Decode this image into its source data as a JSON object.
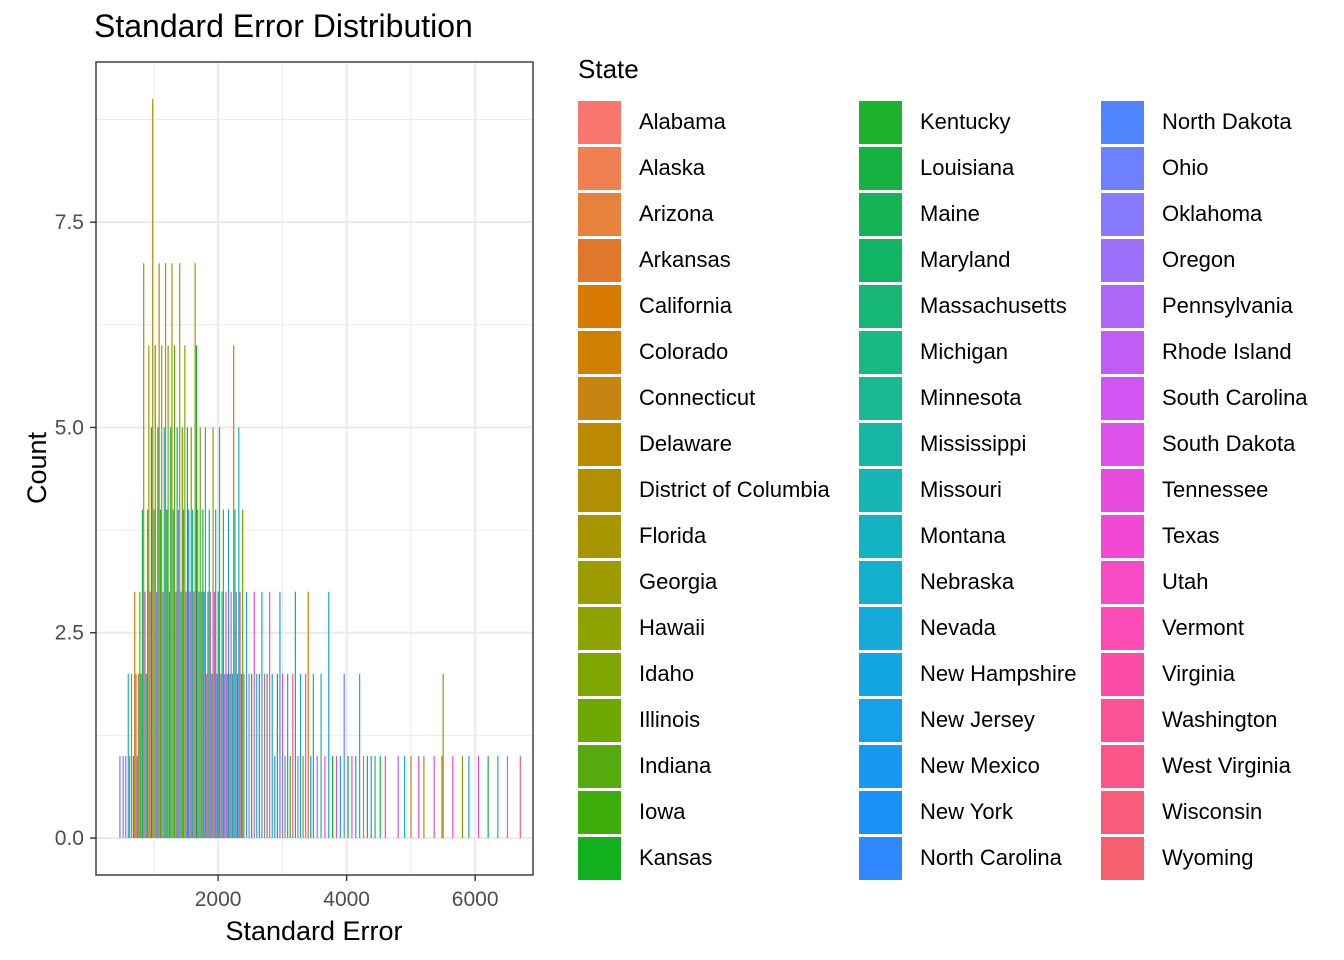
{
  "chart_data": {
    "type": "bar",
    "title": "Standard Error Distribution",
    "xlabel": "Standard Error",
    "ylabel": "Count",
    "xlim": [
      100,
      6900
    ],
    "ylim": [
      -0.45,
      9.45
    ],
    "x_ticks": [
      2000,
      4000,
      6000
    ],
    "y_ticks": [
      0.0,
      2.5,
      5.0,
      7.5
    ],
    "y_tick_labels": [
      "0.0",
      "2.5",
      "5.0",
      "7.5"
    ],
    "grid": true,
    "legend_title": "State",
    "legend_placement": "right",
    "series": [
      {
        "name": "Alabama",
        "color": "#F8766D"
      },
      {
        "name": "Alaska",
        "color": "#F07F52"
      },
      {
        "name": "Arizona",
        "color": "#E7823C"
      },
      {
        "name": "Arkansas",
        "color": "#E0782B"
      },
      {
        "name": "California",
        "color": "#D97A00"
      },
      {
        "name": "Colorado",
        "color": "#D17F00"
      },
      {
        "name": "Connecticut",
        "color": "#C68411"
      },
      {
        "name": "Delaware",
        "color": "#BB8A00"
      },
      {
        "name": "District of Columbia",
        "color": "#B28F00"
      },
      {
        "name": "Florida",
        "color": "#A89600"
      },
      {
        "name": "Georgia",
        "color": "#9C9B00"
      },
      {
        "name": "Hawaii",
        "color": "#8FA300"
      },
      {
        "name": "Idaho",
        "color": "#7FA600"
      },
      {
        "name": "Illinois",
        "color": "#6BA800"
      },
      {
        "name": "Indiana",
        "color": "#55AB0D"
      },
      {
        "name": "Iowa",
        "color": "#3CAD0A"
      },
      {
        "name": "Kansas",
        "color": "#13B01E"
      },
      {
        "name": "Kentucky",
        "color": "#1CB22C"
      },
      {
        "name": "Louisiana",
        "color": "#16B343"
      },
      {
        "name": "Maine",
        "color": "#14B455"
      },
      {
        "name": "Maryland",
        "color": "#12B565"
      },
      {
        "name": "Massachusetts",
        "color": "#16B674"
      },
      {
        "name": "Michigan",
        "color": "#17B883"
      },
      {
        "name": "Minnesota",
        "color": "#19B992"
      },
      {
        "name": "Mississippi",
        "color": "#17B8A3"
      },
      {
        "name": "Missouri",
        "color": "#14B7B3"
      },
      {
        "name": "Montana",
        "color": "#12B4C1"
      },
      {
        "name": "Nebraska",
        "color": "#13B0CE"
      },
      {
        "name": "Nevada",
        "color": "#14ABD8"
      },
      {
        "name": "New Hampshire",
        "color": "#14A6E1"
      },
      {
        "name": "New Jersey",
        "color": "#16A0E9"
      },
      {
        "name": "New Mexico",
        "color": "#1899F1"
      },
      {
        "name": "New York",
        "color": "#1891F8"
      },
      {
        "name": "North Carolina",
        "color": "#2F88FC"
      },
      {
        "name": "North Dakota",
        "color": "#4F85FF"
      },
      {
        "name": "Ohio",
        "color": "#6D80FF"
      },
      {
        "name": "Oklahoma",
        "color": "#877AFD"
      },
      {
        "name": "Oregon",
        "color": "#9C70FB"
      },
      {
        "name": "Pennsylvania",
        "color": "#AE67F9"
      },
      {
        "name": "Rhode Island",
        "color": "#C05DF6"
      },
      {
        "name": "South Carolina",
        "color": "#D254F2"
      },
      {
        "name": "South Dakota",
        "color": "#DF4FEA"
      },
      {
        "name": "Tennessee",
        "color": "#E94BE0"
      },
      {
        "name": "Texas",
        "color": "#F149D3"
      },
      {
        "name": "Utah",
        "color": "#F64BC4"
      },
      {
        "name": "Vermont",
        "color": "#FA4BB6"
      },
      {
        "name": "Virginia",
        "color": "#FD4CA7"
      },
      {
        "name": "Washington",
        "color": "#FD5197"
      },
      {
        "name": "West Virginia",
        "color": "#FB5689"
      },
      {
        "name": "Wisconsin",
        "color": "#F95B7A"
      },
      {
        "name": "Wyoming",
        "color": "#F65F6E"
      }
    ],
    "bars": [
      {
        "x": 470,
        "y": 1,
        "s": 35
      },
      {
        "x": 520,
        "y": 1,
        "s": 40
      },
      {
        "x": 560,
        "y": 1,
        "s": 37
      },
      {
        "x": 600,
        "y": 2,
        "s": 26
      },
      {
        "x": 620,
        "y": 1,
        "s": 44
      },
      {
        "x": 650,
        "y": 2,
        "s": 12
      },
      {
        "x": 680,
        "y": 1,
        "s": 18
      },
      {
        "x": 700,
        "y": 3,
        "s": 5
      },
      {
        "x": 720,
        "y": 2,
        "s": 46
      },
      {
        "x": 740,
        "y": 1,
        "s": 33
      },
      {
        "x": 760,
        "y": 2,
        "s": 9
      },
      {
        "x": 780,
        "y": 3,
        "s": 14
      },
      {
        "x": 800,
        "y": 2,
        "s": 28
      },
      {
        "x": 820,
        "y": 4,
        "s": 19
      },
      {
        "x": 840,
        "y": 7,
        "s": 7
      },
      {
        "x": 860,
        "y": 3,
        "s": 41
      },
      {
        "x": 880,
        "y": 2,
        "s": 22
      },
      {
        "x": 900,
        "y": 4,
        "s": 30
      },
      {
        "x": 920,
        "y": 6,
        "s": 10
      },
      {
        "x": 940,
        "y": 3,
        "s": 47
      },
      {
        "x": 960,
        "y": 5,
        "s": 16
      },
      {
        "x": 980,
        "y": 9,
        "s": 9
      },
      {
        "x": 1000,
        "y": 4,
        "s": 24
      },
      {
        "x": 1020,
        "y": 6,
        "s": 13
      },
      {
        "x": 1040,
        "y": 3,
        "s": 38
      },
      {
        "x": 1060,
        "y": 5,
        "s": 20
      },
      {
        "x": 1080,
        "y": 7,
        "s": 8
      },
      {
        "x": 1100,
        "y": 4,
        "s": 15
      },
      {
        "x": 1120,
        "y": 6,
        "s": 11
      },
      {
        "x": 1140,
        "y": 3,
        "s": 43
      },
      {
        "x": 1160,
        "y": 5,
        "s": 27
      },
      {
        "x": 1180,
        "y": 7,
        "s": 6
      },
      {
        "x": 1200,
        "y": 4,
        "s": 17
      },
      {
        "x": 1220,
        "y": 6,
        "s": 12
      },
      {
        "x": 1240,
        "y": 3,
        "s": 31
      },
      {
        "x": 1260,
        "y": 5,
        "s": 21
      },
      {
        "x": 1280,
        "y": 7,
        "s": 10
      },
      {
        "x": 1300,
        "y": 4,
        "s": 25
      },
      {
        "x": 1320,
        "y": 6,
        "s": 14
      },
      {
        "x": 1340,
        "y": 3,
        "s": 48
      },
      {
        "x": 1360,
        "y": 5,
        "s": 19
      },
      {
        "x": 1380,
        "y": 4,
        "s": 36
      },
      {
        "x": 1400,
        "y": 7,
        "s": 8
      },
      {
        "x": 1420,
        "y": 3,
        "s": 23
      },
      {
        "x": 1440,
        "y": 5,
        "s": 15
      },
      {
        "x": 1460,
        "y": 4,
        "s": 29
      },
      {
        "x": 1480,
        "y": 6,
        "s": 11
      },
      {
        "x": 1500,
        "y": 3,
        "s": 39
      },
      {
        "x": 1520,
        "y": 5,
        "s": 17
      },
      {
        "x": 1540,
        "y": 4,
        "s": 32
      },
      {
        "x": 1560,
        "y": 3,
        "s": 45
      },
      {
        "x": 1580,
        "y": 5,
        "s": 13
      },
      {
        "x": 1600,
        "y": 4,
        "s": 27
      },
      {
        "x": 1620,
        "y": 3,
        "s": 42
      },
      {
        "x": 1640,
        "y": 7,
        "s": 9
      },
      {
        "x": 1660,
        "y": 6,
        "s": 16
      },
      {
        "x": 1680,
        "y": 4,
        "s": 22
      },
      {
        "x": 1700,
        "y": 3,
        "s": 34
      },
      {
        "x": 1720,
        "y": 5,
        "s": 12
      },
      {
        "x": 1740,
        "y": 3,
        "s": 40
      },
      {
        "x": 1760,
        "y": 4,
        "s": 18
      },
      {
        "x": 1780,
        "y": 3,
        "s": 30
      },
      {
        "x": 1800,
        "y": 5,
        "s": 24
      },
      {
        "x": 1820,
        "y": 2,
        "s": 46
      },
      {
        "x": 1840,
        "y": 3,
        "s": 15
      },
      {
        "x": 1860,
        "y": 4,
        "s": 27
      },
      {
        "x": 1880,
        "y": 3,
        "s": 37
      },
      {
        "x": 1900,
        "y": 2,
        "s": 20
      },
      {
        "x": 1920,
        "y": 5,
        "s": 11
      },
      {
        "x": 1940,
        "y": 3,
        "s": 43
      },
      {
        "x": 1960,
        "y": 4,
        "s": 29
      },
      {
        "x": 1980,
        "y": 2,
        "s": 33
      },
      {
        "x": 2000,
        "y": 3,
        "s": 18
      },
      {
        "x": 2020,
        "y": 5,
        "s": 22
      },
      {
        "x": 2040,
        "y": 2,
        "s": 44
      },
      {
        "x": 2060,
        "y": 3,
        "s": 26
      },
      {
        "x": 2080,
        "y": 4,
        "s": 14
      },
      {
        "x": 2100,
        "y": 2,
        "s": 38
      },
      {
        "x": 2120,
        "y": 3,
        "s": 47
      },
      {
        "x": 2140,
        "y": 2,
        "s": 21
      },
      {
        "x": 2160,
        "y": 4,
        "s": 31
      },
      {
        "x": 2180,
        "y": 2,
        "s": 12
      },
      {
        "x": 2200,
        "y": 3,
        "s": 41
      },
      {
        "x": 2220,
        "y": 2,
        "s": 28
      },
      {
        "x": 2240,
        "y": 6,
        "s": 5
      },
      {
        "x": 2260,
        "y": 4,
        "s": 23
      },
      {
        "x": 2280,
        "y": 3,
        "s": 35
      },
      {
        "x": 2300,
        "y": 2,
        "s": 19
      },
      {
        "x": 2320,
        "y": 5,
        "s": 25
      },
      {
        "x": 2340,
        "y": 3,
        "s": 46
      },
      {
        "x": 2360,
        "y": 2,
        "s": 30
      },
      {
        "x": 2380,
        "y": 4,
        "s": 13
      },
      {
        "x": 2400,
        "y": 2,
        "s": 40
      },
      {
        "x": 2440,
        "y": 3,
        "s": 24
      },
      {
        "x": 2480,
        "y": 2,
        "s": 36
      },
      {
        "x": 2520,
        "y": 2,
        "s": 17
      },
      {
        "x": 2560,
        "y": 3,
        "s": 44
      },
      {
        "x": 2600,
        "y": 2,
        "s": 27
      },
      {
        "x": 2640,
        "y": 2,
        "s": 33
      },
      {
        "x": 2680,
        "y": 3,
        "s": 22
      },
      {
        "x": 2720,
        "y": 2,
        "s": 39
      },
      {
        "x": 2760,
        "y": 2,
        "s": 14
      },
      {
        "x": 2800,
        "y": 3,
        "s": 45
      },
      {
        "x": 2840,
        "y": 2,
        "s": 26
      },
      {
        "x": 2880,
        "y": 1,
        "s": 34
      },
      {
        "x": 2920,
        "y": 2,
        "s": 18
      },
      {
        "x": 2960,
        "y": 3,
        "s": 29
      },
      {
        "x": 3000,
        "y": 2,
        "s": 42
      },
      {
        "x": 3040,
        "y": 1,
        "s": 23
      },
      {
        "x": 3080,
        "y": 2,
        "s": 31
      },
      {
        "x": 3120,
        "y": 1,
        "s": 15
      },
      {
        "x": 3160,
        "y": 2,
        "s": 47
      },
      {
        "x": 3200,
        "y": 3,
        "s": 20
      },
      {
        "x": 3240,
        "y": 1,
        "s": 37
      },
      {
        "x": 3280,
        "y": 2,
        "s": 28
      },
      {
        "x": 3320,
        "y": 1,
        "s": 12
      },
      {
        "x": 3360,
        "y": 2,
        "s": 43
      },
      {
        "x": 3400,
        "y": 3,
        "s": 4
      },
      {
        "x": 3440,
        "y": 1,
        "s": 32
      },
      {
        "x": 3480,
        "y": 2,
        "s": 21
      },
      {
        "x": 3540,
        "y": 1,
        "s": 38
      },
      {
        "x": 3600,
        "y": 2,
        "s": 25
      },
      {
        "x": 3660,
        "y": 1,
        "s": 46
      },
      {
        "x": 3720,
        "y": 3,
        "s": 30
      },
      {
        "x": 3780,
        "y": 1,
        "s": 16
      },
      {
        "x": 3840,
        "y": 1,
        "s": 40
      },
      {
        "x": 3900,
        "y": 1,
        "s": 27
      },
      {
        "x": 3960,
        "y": 2,
        "s": 35
      },
      {
        "x": 4020,
        "y": 1,
        "s": 19
      },
      {
        "x": 4080,
        "y": 1,
        "s": 44
      },
      {
        "x": 4140,
        "y": 1,
        "s": 29
      },
      {
        "x": 4200,
        "y": 2,
        "s": 24
      },
      {
        "x": 4260,
        "y": 1,
        "s": 41
      },
      {
        "x": 4320,
        "y": 1,
        "s": 15
      },
      {
        "x": 4380,
        "y": 1,
        "s": 33
      },
      {
        "x": 4440,
        "y": 1,
        "s": 22
      },
      {
        "x": 4520,
        "y": 1,
        "s": 18
      },
      {
        "x": 4600,
        "y": 1,
        "s": 46
      },
      {
        "x": 4800,
        "y": 1,
        "s": 39
      },
      {
        "x": 4900,
        "y": 1,
        "s": 26
      },
      {
        "x": 5000,
        "y": 1,
        "s": 7
      },
      {
        "x": 5120,
        "y": 1,
        "s": 44
      },
      {
        "x": 5200,
        "y": 1,
        "s": 12
      },
      {
        "x": 5360,
        "y": 1,
        "s": 43
      },
      {
        "x": 5480,
        "y": 1,
        "s": 3
      },
      {
        "x": 5500,
        "y": 2,
        "s": 9
      },
      {
        "x": 5650,
        "y": 1,
        "s": 44
      },
      {
        "x": 5800,
        "y": 1,
        "s": 12
      },
      {
        "x": 5900,
        "y": 1,
        "s": 28
      },
      {
        "x": 6050,
        "y": 1,
        "s": 44
      },
      {
        "x": 6200,
        "y": 1,
        "s": 18
      },
      {
        "x": 6350,
        "y": 1,
        "s": 24
      },
      {
        "x": 6500,
        "y": 1,
        "s": 38
      },
      {
        "x": 6700,
        "y": 1,
        "s": 49
      }
    ]
  }
}
